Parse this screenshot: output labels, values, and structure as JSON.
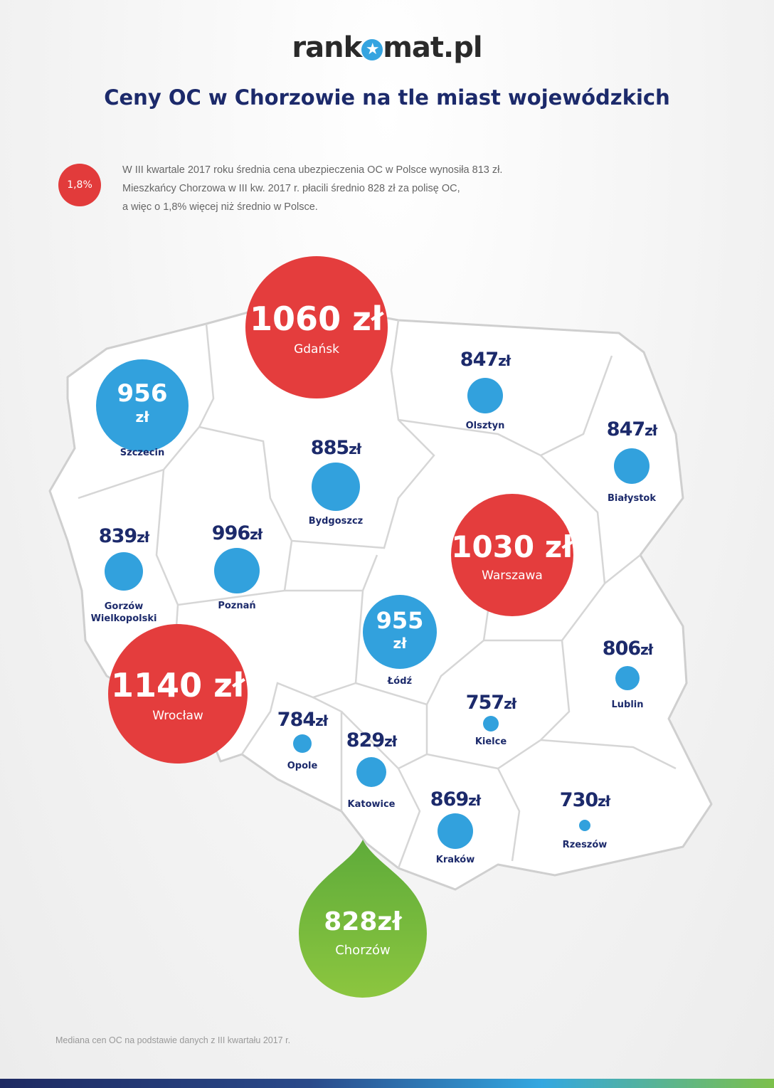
{
  "logo": {
    "text_left": "rank",
    "text_right": "mat.pl",
    "brand_color": "#35a4e0"
  },
  "title": "Ceny OC w Chorzowie na tle miast wojewódzkich",
  "intro": {
    "badge": "1,8%",
    "lines": [
      "W III kwartale 2017 roku średnia cena ubezpieczenia OC w Polsce wynosiła 813 zł.",
      "Mieszkańcy Chorzowa w III kw. 2017 r. płacili średnio 828 zł za polisę OC,",
      "a więc o 1,8% więcej niż średnio w Polsce."
    ]
  },
  "colors": {
    "high": "#e43d3d",
    "normal": "#32a1dd",
    "highlight": "#7cc04a",
    "text": "#1c2a6b"
  },
  "unit": "zł",
  "cities": [
    {
      "name": "Gdańsk",
      "value": 1060,
      "style": "red"
    },
    {
      "name": "Szczecin",
      "value": 956,
      "style": "blue-big"
    },
    {
      "name": "Olsztyn",
      "value": 847,
      "style": "dot"
    },
    {
      "name": "Białystok",
      "value": 847,
      "style": "dot"
    },
    {
      "name": "Bydgoszcz",
      "value": 885,
      "style": "dot"
    },
    {
      "name": "Warszawa",
      "value": 1030,
      "style": "red"
    },
    {
      "name": "Gorzów Wielkopolski",
      "value": 839,
      "style": "dot"
    },
    {
      "name": "Poznań",
      "value": 996,
      "style": "dot"
    },
    {
      "name": "Łódź",
      "value": 955,
      "style": "blue-big"
    },
    {
      "name": "Wrocław",
      "value": 1140,
      "style": "red"
    },
    {
      "name": "Lublin",
      "value": 806,
      "style": "dot"
    },
    {
      "name": "Kielce",
      "value": 757,
      "style": "dot"
    },
    {
      "name": "Opole",
      "value": 784,
      "style": "dot"
    },
    {
      "name": "Katowice",
      "value": 829,
      "style": "dot"
    },
    {
      "name": "Kraków",
      "value": 869,
      "style": "dot"
    },
    {
      "name": "Rzeszów",
      "value": 730,
      "style": "dot"
    }
  ],
  "highlight": {
    "name": "Chorzów",
    "value": "828zł"
  },
  "footnote": "Mediana cen OC na podstawie danych z III kwartału 2017 r."
}
